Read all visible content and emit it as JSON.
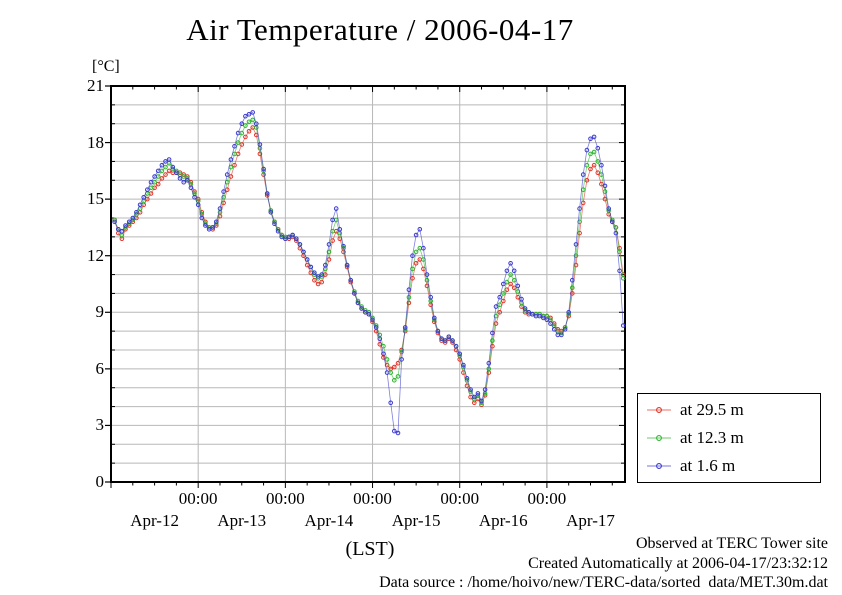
{
  "title": "Air Temperature / 2006-04-17",
  "y_unit_label": "[°C]",
  "x_axis_label": "(LST)",
  "footer": {
    "line1": "Observed at TERC Tower site",
    "line2": "Created Automatically at 2006-04-17/23:32:12",
    "line3": "Data source : /home/hoivo/new/TERC-data/sorted  data/MET.30m.dat"
  },
  "colors": {
    "grid": "#b8b8b8",
    "frame": "#000000",
    "series_red": "#e03328",
    "series_green": "#2eb52e",
    "series_blue": "#3a3ad0"
  },
  "chart_data": {
    "type": "line",
    "title": "Air Temperature / 2006-04-17",
    "xlabel": "(LST)",
    "ylabel": "[°C]",
    "ylim": [
      0,
      21
    ],
    "y_major_ticks": [
      0,
      3,
      6,
      9,
      12,
      15,
      18,
      21
    ],
    "y_gridline_step_deg": 1,
    "x_span_hours": 141.5,
    "x_origin": "2006-04-12 00:00 LST",
    "x_minor_tick_step_hours": 6,
    "x_midnight_tick_hours": [
      24,
      48,
      72,
      96,
      120
    ],
    "x_midnight_tick_label": "00:00",
    "day_labels": [
      {
        "label": "Apr-12",
        "hour": 12
      },
      {
        "label": "Apr-13",
        "hour": 36
      },
      {
        "label": "Apr-14",
        "hour": 60
      },
      {
        "label": "Apr-15",
        "hour": 84
      },
      {
        "label": "Apr-16",
        "hour": 108
      },
      {
        "label": "Apr-17",
        "hour": 132
      }
    ],
    "grid": true,
    "legend_position": "outside-right-bottom",
    "sample_interval_hours": 1,
    "first_sample_hour": 1,
    "series": [
      {
        "name": "at 29.5 m",
        "color": "#e03328",
        "values": [
          13.9,
          13.2,
          12.9,
          13.4,
          13.6,
          13.8,
          14.0,
          14.3,
          14.7,
          15.0,
          15.3,
          15.6,
          15.8,
          16.1,
          16.3,
          16.5,
          16.4,
          16.4,
          16.4,
          16.3,
          16.2,
          15.9,
          15.4,
          15.0,
          14.3,
          13.8,
          13.5,
          13.4,
          13.6,
          14.1,
          14.8,
          15.5,
          16.2,
          16.8,
          17.4,
          17.9,
          18.3,
          18.6,
          18.8,
          18.4,
          17.4,
          16.3,
          15.2,
          14.4,
          13.8,
          13.4,
          13.1,
          12.9,
          12.9,
          13.0,
          12.8,
          12.4,
          12.0,
          11.5,
          11.1,
          10.7,
          10.5,
          10.6,
          11.0,
          11.8,
          12.8,
          13.3,
          12.9,
          12.2,
          11.4,
          10.6,
          10.0,
          9.5,
          9.2,
          9.0,
          8.9,
          8.5,
          8.0,
          7.3,
          6.6,
          6.2,
          6.0,
          6.1,
          6.3,
          7.0,
          8.0,
          9.5,
          10.8,
          11.6,
          11.8,
          11.3,
          10.4,
          9.4,
          8.5,
          7.9,
          7.5,
          7.4,
          7.6,
          7.4,
          7.0,
          6.5,
          5.8,
          5.1,
          4.5,
          4.2,
          4.4,
          4.1,
          4.6,
          5.8,
          7.2,
          8.4,
          9.0,
          9.6,
          10.2,
          10.5,
          10.3,
          9.8,
          9.3,
          9.0,
          8.9,
          8.9,
          8.9,
          8.9,
          8.8,
          8.8,
          8.7,
          8.4,
          8.1,
          8.0,
          8.2,
          8.8,
          10.0,
          11.5,
          13.2,
          14.8,
          16.0,
          16.6,
          16.8,
          16.4,
          15.8,
          15.0,
          14.2,
          13.8,
          13.5,
          12.4,
          11.0
        ]
      },
      {
        "name": "at 12.3 m",
        "color": "#2eb52e",
        "values": [
          13.9,
          13.4,
          13.1,
          13.5,
          13.7,
          13.9,
          14.2,
          14.5,
          14.9,
          15.3,
          15.6,
          15.9,
          16.2,
          16.5,
          16.7,
          16.9,
          16.6,
          16.5,
          16.3,
          16.2,
          16.1,
          15.8,
          15.3,
          14.9,
          14.2,
          13.7,
          13.5,
          13.5,
          13.7,
          14.3,
          15.1,
          15.9,
          16.7,
          17.4,
          18.0,
          18.5,
          18.9,
          19.1,
          19.2,
          18.8,
          17.7,
          16.5,
          15.3,
          14.4,
          13.8,
          13.4,
          13.1,
          13.0,
          13.0,
          13.1,
          12.9,
          12.6,
          12.2,
          11.8,
          11.4,
          11.0,
          10.8,
          10.9,
          11.3,
          12.2,
          13.3,
          13.9,
          13.2,
          12.4,
          11.5,
          10.7,
          10.1,
          9.6,
          9.3,
          9.1,
          9.0,
          8.7,
          8.3,
          7.8,
          7.2,
          6.5,
          5.8,
          5.4,
          5.6,
          6.9,
          8.1,
          9.8,
          11.3,
          12.2,
          12.4,
          11.8,
          10.7,
          9.6,
          8.6,
          8.0,
          7.6,
          7.5,
          7.7,
          7.5,
          7.2,
          6.7,
          6.1,
          5.4,
          4.8,
          4.4,
          4.6,
          4.2,
          4.7,
          6.0,
          7.5,
          8.8,
          9.4,
          10.0,
          10.6,
          11.0,
          10.7,
          10.1,
          9.5,
          9.1,
          9.0,
          8.9,
          8.9,
          8.9,
          8.8,
          8.8,
          8.6,
          8.3,
          8.0,
          7.9,
          8.2,
          8.9,
          10.3,
          12.0,
          13.8,
          15.5,
          16.8,
          17.4,
          17.5,
          17.0,
          16.3,
          15.4,
          14.4,
          13.9,
          13.5,
          12.2,
          10.8
        ]
      },
      {
        "name": "at 1.6 m",
        "color": "#3a3ad0",
        "values": [
          13.8,
          13.4,
          13.3,
          13.6,
          13.8,
          14.0,
          14.3,
          14.7,
          15.1,
          15.5,
          15.9,
          16.2,
          16.5,
          16.8,
          17.0,
          17.1,
          16.7,
          16.4,
          16.1,
          15.9,
          16.0,
          15.6,
          15.1,
          14.7,
          14.0,
          13.6,
          13.4,
          13.5,
          13.8,
          14.5,
          15.4,
          16.3,
          17.1,
          17.8,
          18.5,
          19.0,
          19.4,
          19.5,
          19.6,
          19.0,
          17.9,
          16.6,
          15.3,
          14.3,
          13.7,
          13.3,
          13.0,
          12.9,
          13.0,
          13.1,
          12.9,
          12.6,
          12.2,
          11.8,
          11.4,
          11.1,
          10.9,
          11.0,
          11.5,
          12.6,
          13.9,
          14.5,
          13.4,
          12.5,
          11.5,
          10.7,
          10.0,
          9.5,
          9.2,
          9.0,
          8.9,
          8.6,
          8.2,
          7.6,
          6.8,
          5.8,
          4.2,
          2.7,
          2.6,
          6.5,
          8.2,
          10.2,
          12.0,
          13.1,
          13.4,
          12.4,
          11.0,
          9.8,
          8.7,
          8.0,
          7.6,
          7.5,
          7.7,
          7.5,
          7.2,
          6.8,
          6.2,
          5.5,
          4.9,
          4.5,
          4.7,
          4.3,
          4.9,
          6.3,
          7.9,
          9.3,
          9.8,
          10.5,
          11.2,
          11.6,
          11.2,
          10.4,
          9.7,
          9.2,
          9.0,
          8.9,
          8.8,
          8.8,
          8.7,
          8.6,
          8.4,
          8.1,
          7.8,
          7.8,
          8.1,
          9.0,
          10.7,
          12.6,
          14.5,
          16.3,
          17.6,
          18.2,
          18.3,
          17.7,
          16.8,
          15.7,
          14.5,
          13.8,
          13.2,
          11.2,
          8.3
        ]
      }
    ]
  }
}
